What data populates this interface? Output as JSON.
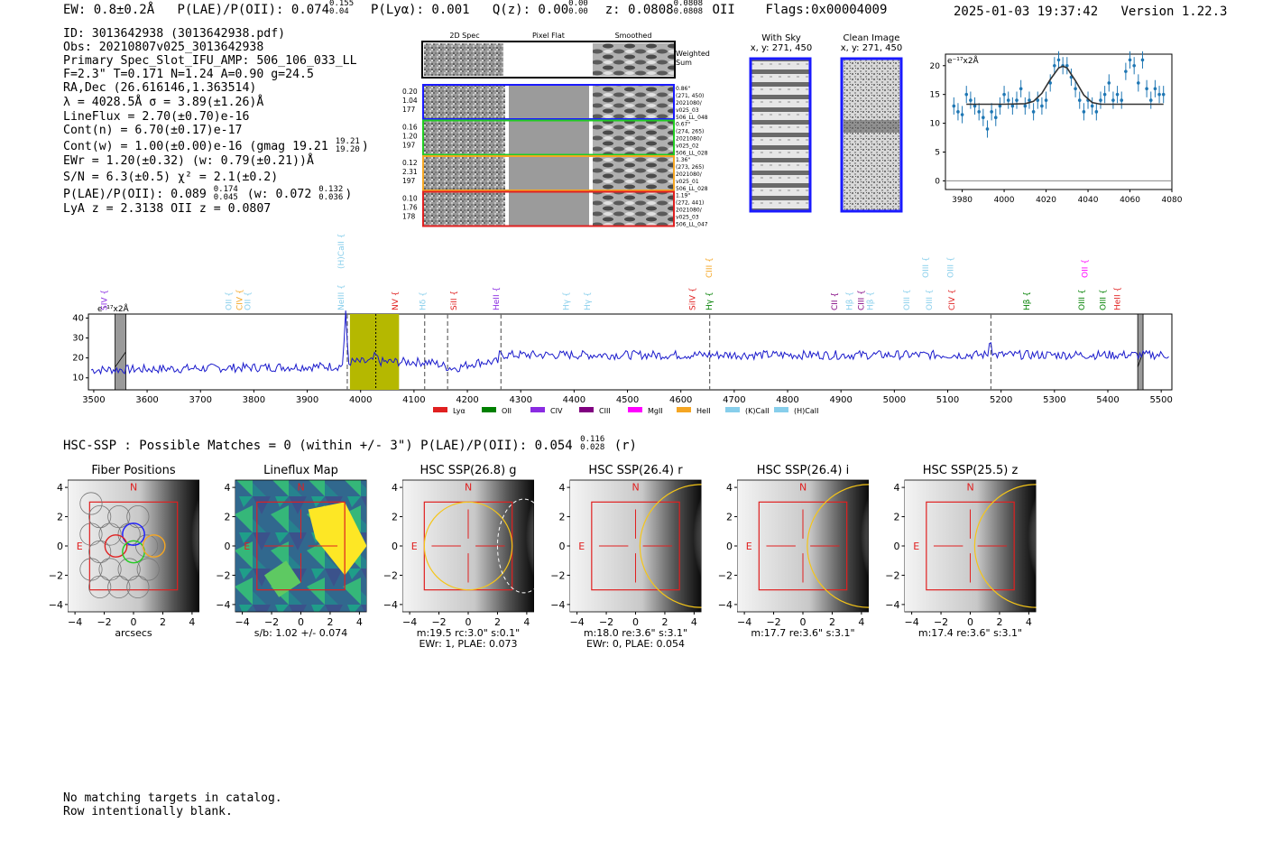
{
  "header": {
    "ew": "EW: 0.8±0.2Å",
    "plae_label": "P(LAE)/P(OII): 0.074",
    "plae_hi": "0.155",
    "plae_lo": "0.04",
    "plya": "P(Lyα): 0.001",
    "qz_label": "Q(z): 0.00",
    "qz_hi": "0.00",
    "qz_lo": "0.00",
    "z_label": "z: 0.0808",
    "z_hi": "0.0808",
    "z_lo": "0.0808",
    "z_line": "OII",
    "flags": "Flags:0x00004009",
    "timestamp": "2025-01-03 19:37:42",
    "version": "Version 1.22.3"
  },
  "info": {
    "id": "ID: 3013642938 (3013642938.pdf)",
    "obs": "Obs: 20210807v025_3013642938",
    "primary": "Primary Spec_Slot_IFU_AMP: 506_106_033_LL",
    "params": "F=2.3\"  T=0.171  N=1.24  A=0.90  g=24.5",
    "radec": "RA,Dec (26.616146,1.363514)",
    "lambda": "λ = 4028.5Å   σ = 3.89(±1.26)Å",
    "lineflux": "LineFlux = 2.70(±0.70)e-16",
    "contn": "Cont(n) = 6.70(±0.17)e-17",
    "contw": "Cont(w) = 1.00(±0.00)e-16 (gmag 19.21",
    "contw_hi": "19.21",
    "contw_lo": "19.20",
    "ewr": "EWr = 1.20(±0.32) (w: 0.79(±0.21))Å",
    "sn": "S/N = 6.3(±0.5)  χ² = 2.1(±0.2)",
    "plae": "P(LAE)/P(OII): 0.089",
    "plae_hi": "0.174",
    "plae_lo": "0.045",
    "plae_w": "(w: 0.072",
    "plae_w_hi": "0.132",
    "plae_w_lo": "0.036",
    "lya": "LyA z = 2.3138   OII z = 0.0807"
  },
  "cutouts": {
    "col_2d": "2D Spec",
    "col_flat": "Pixel Flat",
    "col_smooth": "Smoothed",
    "weighted": "Weighted",
    "sum": "Sum",
    "rows": [
      {
        "w1": "0.20",
        "w2": "1.04",
        "w3": "177",
        "info": [
          "0.86\"",
          "(271, 450)",
          "2021080/",
          "v025_03",
          "506_LL_048"
        ],
        "color": "#1a1aff"
      },
      {
        "w1": "0.16",
        "w2": "1.20",
        "w3": "197",
        "info": [
          "0.67\"",
          "(274, 265)",
          "2021080/",
          "v025_02",
          "506_LL_028"
        ],
        "color": "#22cc22"
      },
      {
        "w1": "0.12",
        "w2": "2.31",
        "w3": "197",
        "info": [
          "1.36\"",
          "(273, 265)",
          "2021080/",
          "v025_01",
          "506_LL_028"
        ],
        "color": "#f5a623"
      },
      {
        "w1": "0.10",
        "w2": "1.76",
        "w3": "178",
        "info": [
          "1.19\"",
          "(272, 441)",
          "2021080/",
          "v025_03",
          "506_LL_047"
        ],
        "color": "#e02020"
      }
    ],
    "with_sky": "With Sky",
    "with_sky_xy": "x, y: 271, 450",
    "clean": "Clean Image",
    "clean_xy": "x, y: 271, 450"
  },
  "zoom_chart": {
    "type": "scatter",
    "unit_label": "e⁻¹⁷x2Å",
    "xlim": [
      3972,
      4080
    ],
    "ylim": [
      -1.5,
      22
    ],
    "x_ticks": [
      3980,
      4000,
      4020,
      4040,
      4060,
      4080
    ],
    "y_ticks": [
      0,
      5,
      10,
      15,
      20
    ],
    "x": [
      3976,
      3978,
      3980,
      3982,
      3984,
      3986,
      3988,
      3990,
      3992,
      3994,
      3996,
      3998,
      4000,
      4002,
      4004,
      4006,
      4008,
      4010,
      4012,
      4014,
      4016,
      4018,
      4020,
      4022,
      4024,
      4026,
      4028,
      4030,
      4032,
      4034,
      4036,
      4038,
      4040,
      4042,
      4044,
      4046,
      4048,
      4050,
      4052,
      4054,
      4056,
      4058,
      4060,
      4062,
      4064,
      4066,
      4068,
      4070,
      4072,
      4074,
      4076
    ],
    "y": [
      13,
      12,
      11.5,
      15,
      14,
      13,
      12,
      11,
      9,
      12,
      11,
      13,
      15,
      14,
      13,
      14,
      16,
      13,
      14,
      12,
      14,
      13,
      14,
      17,
      20,
      21,
      20,
      20,
      18,
      16,
      14,
      12,
      14,
      13,
      12,
      14,
      15,
      17,
      14,
      15,
      14,
      19,
      21,
      20,
      17,
      21,
      16,
      14,
      16,
      15,
      15
    ],
    "fit_x": [
      3982,
      4000,
      4010,
      4014,
      4018,
      4022,
      4026,
      4028,
      4030,
      4034,
      4038,
      4042,
      4046,
      4060,
      4076
    ],
    "fit_y": [
      13.3,
      13.3,
      13.4,
      13.8,
      15.2,
      17.6,
      19.6,
      19.9,
      19.6,
      17.4,
      14.9,
      13.6,
      13.3,
      13.3,
      13.3
    ]
  },
  "spectrum": {
    "unit_label": "e⁻¹⁷x2Å",
    "xlim": [
      3490,
      5520
    ],
    "ylim": [
      4,
      42
    ],
    "x_ticks": [
      3500,
      3600,
      3700,
      3800,
      3900,
      4000,
      4100,
      4200,
      4300,
      4400,
      4500,
      4600,
      4700,
      4800,
      4900,
      5000,
      5100,
      5200,
      5300,
      5400,
      5500
    ],
    "y_ticks": [
      10,
      20,
      30,
      40
    ],
    "highlight_range": [
      3980,
      4072
    ],
    "fit_center": 4028.5,
    "hatched": [
      [
        3540,
        3560
      ],
      [
        5456,
        5466
      ]
    ],
    "dashed_lines": [
      3975,
      4120,
      4163,
      4263,
      4654,
      5181
    ],
    "line_labels": [
      {
        "x": 3525,
        "text": "SIV",
        "color": "#8a2be2",
        "tier": "low"
      },
      {
        "x": 3758,
        "text": "OII",
        "color": "#87ceeb",
        "tier": "low"
      },
      {
        "x": 3778,
        "text": "CIV",
        "color": "#f5a623",
        "tier": "low"
      },
      {
        "x": 3793,
        "text": "OII",
        "color": "#87ceeb",
        "tier": "low"
      },
      {
        "x": 3968,
        "text": "(H)CaII",
        "color": "#87ceeb",
        "tier": "high"
      },
      {
        "x": 3968,
        "text": "NeIII",
        "color": "#87ceeb",
        "tier": "low"
      },
      {
        "x": 4070,
        "text": "NV",
        "color": "#e02020",
        "tier": "low"
      },
      {
        "x": 4121,
        "text": "Hδ",
        "color": "#87ceeb",
        "tier": "low"
      },
      {
        "x": 4180,
        "text": "SiII",
        "color": "#e02020",
        "tier": "low"
      },
      {
        "x": 4259,
        "text": "HeII",
        "color": "#8a2be2",
        "tier": "low"
      },
      {
        "x": 4390,
        "text": "Hγ",
        "color": "#87ceeb",
        "tier": "low"
      },
      {
        "x": 4430,
        "text": "Hγ",
        "color": "#87ceeb",
        "tier": "low"
      },
      {
        "x": 4627,
        "text": "SiIV",
        "color": "#e02020",
        "tier": "low"
      },
      {
        "x": 4658,
        "text": "CIII",
        "color": "#f5a623",
        "tier": "mid"
      },
      {
        "x": 4658,
        "text": "Hγ",
        "color": "#008000",
        "tier": "low"
      },
      {
        "x": 4893,
        "text": "CII",
        "color": "#800080",
        "tier": "low"
      },
      {
        "x": 4921,
        "text": "Hβ",
        "color": "#87ceeb",
        "tier": "low"
      },
      {
        "x": 4943,
        "text": "CIII",
        "color": "#800080",
        "tier": "low"
      },
      {
        "x": 4960,
        "text": "Hβ",
        "color": "#87ceeb",
        "tier": "low"
      },
      {
        "x": 5028,
        "text": "OIII",
        "color": "#87ceeb",
        "tier": "low"
      },
      {
        "x": 5064,
        "text": "OIII",
        "color": "#87ceeb",
        "tier": "mid"
      },
      {
        "x": 5070,
        "text": "OIII",
        "color": "#87ceeb",
        "tier": "low"
      },
      {
        "x": 5110,
        "text": "OIII",
        "color": "#87ceeb",
        "tier": "mid"
      },
      {
        "x": 5113,
        "text": "CIV",
        "color": "#e02020",
        "tier": "low"
      },
      {
        "x": 5253,
        "text": "Hβ",
        "color": "#008000",
        "tier": "low"
      },
      {
        "x": 5356,
        "text": "OIII",
        "color": "#008000",
        "tier": "low"
      },
      {
        "x": 5362,
        "text": "OII",
        "color": "#ff00ff",
        "tier": "mid"
      },
      {
        "x": 5396,
        "text": "OIII",
        "color": "#008000",
        "tier": "low"
      },
      {
        "x": 5423,
        "text": "HeII",
        "color": "#e02020",
        "tier": "low"
      }
    ],
    "legend": [
      {
        "label": "Lyα",
        "color": "#e02020"
      },
      {
        "label": "OII",
        "color": "#008000"
      },
      {
        "label": "CIV",
        "color": "#8a2be2"
      },
      {
        "label": "CIII",
        "color": "#800080"
      },
      {
        "label": "MgII",
        "color": "#ff00ff"
      },
      {
        "label": "HeII",
        "color": "#f5a623"
      },
      {
        "label": "(K)CaII",
        "color": "#87ceeb"
      },
      {
        "label": "(H)CaII",
        "color": "#87ceeb"
      }
    ]
  },
  "hsc": {
    "heading": "HSC-SSP : Possible Matches = 0 (within +/- 3\")  P(LAE)/P(OII): 0.054",
    "heading_hi": "0.116",
    "heading_lo": "0.028",
    "heading_tail": "(r)",
    "panels": [
      {
        "title": "Fiber Positions",
        "caption1": "arcsecs",
        "caption2": ""
      },
      {
        "title": "Lineflux Map",
        "caption1": "s/b: 1.02 +/- 0.074",
        "caption2": ""
      },
      {
        "title": "HSC SSP(26.8) g",
        "caption1": "m:19.5 rc:3.0\"  s:0.1\"",
        "caption2": "EWr: 1, PLAE: 0.073"
      },
      {
        "title": "HSC SSP(26.4) r",
        "caption1": "m:18.0  re:3.6\"  s:3.1\"",
        "caption2": "EWr: 0, PLAE: 0.054"
      },
      {
        "title": "HSC SSP(26.4) i",
        "caption1": "m:17.7  re:3.6\"  s:3.1\"",
        "caption2": ""
      },
      {
        "title": "HSC SSP(25.5) z",
        "caption1": "m:17.4  re:3.6\"  s:3.1\"",
        "caption2": ""
      }
    ],
    "axis_ticks": [
      "−4",
      "−2",
      "0",
      "2",
      "4"
    ],
    "compass_n": "N",
    "compass_e": "E"
  },
  "footer": {
    "line1": "No matching targets in catalog.",
    "line2": "Row intentionally blank."
  }
}
